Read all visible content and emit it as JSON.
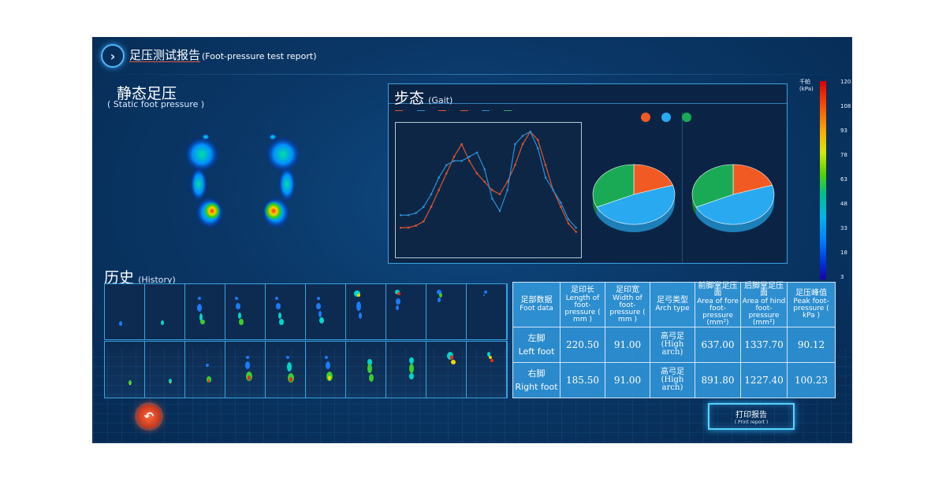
{
  "header": {
    "title_zh": "足压测试报告",
    "title_en": "(Foot-pressure test report)",
    "back_icon": "chevron-right-icon"
  },
  "static_section": {
    "title_zh": "静态足压",
    "title_en": "( Static foot pressure )"
  },
  "gait_section": {
    "title_zh": "步态",
    "title_en": "(Gait)"
  },
  "pressure_scale": {
    "unit_zh": "千帕",
    "unit_en": "(kPa)",
    "ticks": [
      "120",
      "108",
      "93",
      "78",
      "63",
      "48",
      "33",
      "18",
      "3"
    ]
  },
  "history_section": {
    "title_zh": "历史",
    "title_en": "(History)"
  },
  "foot_table": {
    "headers": [
      {
        "zh": "足部数据",
        "en": "Foot data"
      },
      {
        "zh": "足印长",
        "en": "Length of foot-pressure ( mm )"
      },
      {
        "zh": "足印宽",
        "en": "Width of foot-pressure ( mm )"
      },
      {
        "zh": "足弓类型",
        "en": "Arch type"
      },
      {
        "zh": "前脚掌足压面",
        "en": "Area of fore foot-pressure (mm²)"
      },
      {
        "zh": "后脚掌足压面",
        "en": "Area of hind foot-pressure (mm²)"
      },
      {
        "zh": "足压峰值",
        "en": "Peak foot-pressure ( kPa )"
      }
    ],
    "rows": [
      {
        "label_zh": "左脚",
        "label_en": "Left foot",
        "length": "220.50",
        "width": "91.00",
        "arch_zh": "高弓足",
        "arch_en": "(High arch)",
        "fore_area": "637.00",
        "hind_area": "1337.70",
        "peak": "90.12"
      },
      {
        "label_zh": "右脚",
        "label_en": "Right foot",
        "length": "185.50",
        "width": "91.00",
        "arch_zh": "高弓足",
        "arch_en": "(High arch)",
        "fore_area": "891.80",
        "hind_area": "1227.40",
        "peak": "100.23"
      }
    ]
  },
  "print_button": {
    "label_zh": "打印报告",
    "label_en": "( Print report )"
  },
  "undo_icon": "undo-icon",
  "colors": {
    "background": "#0a3767",
    "panel_border": "#3aa3e0",
    "table_header": "#2d8ed0",
    "series_left": "#e2552a",
    "series_right": "#2f8fd6",
    "series_green": "#2faa5c",
    "pie_orange": "#f15a22",
    "pie_blue": "#29a9ef",
    "pie_green": "#1aaa55"
  },
  "chart_data": [
    {
      "type": "line",
      "series": [
        {
          "values": [
            12,
            12,
            13,
            15,
            22,
            30,
            38,
            46,
            52,
            44,
            38,
            34,
            30,
            28,
            34,
            42,
            52,
            58,
            54,
            42,
            30,
            22,
            14,
            10
          ]
        },
        {
          "values": [
            18,
            18,
            19,
            22,
            28,
            36,
            42,
            44,
            44,
            46,
            48,
            40,
            26,
            20,
            30,
            52,
            56,
            58,
            50,
            36,
            30,
            24,
            16,
            12
          ]
        }
      ]
    },
    {
      "type": "pie",
      "values": [
        20,
        48,
        32
      ]
    },
    {
      "type": "pie",
      "values": [
        20,
        48,
        32
      ]
    }
  ]
}
